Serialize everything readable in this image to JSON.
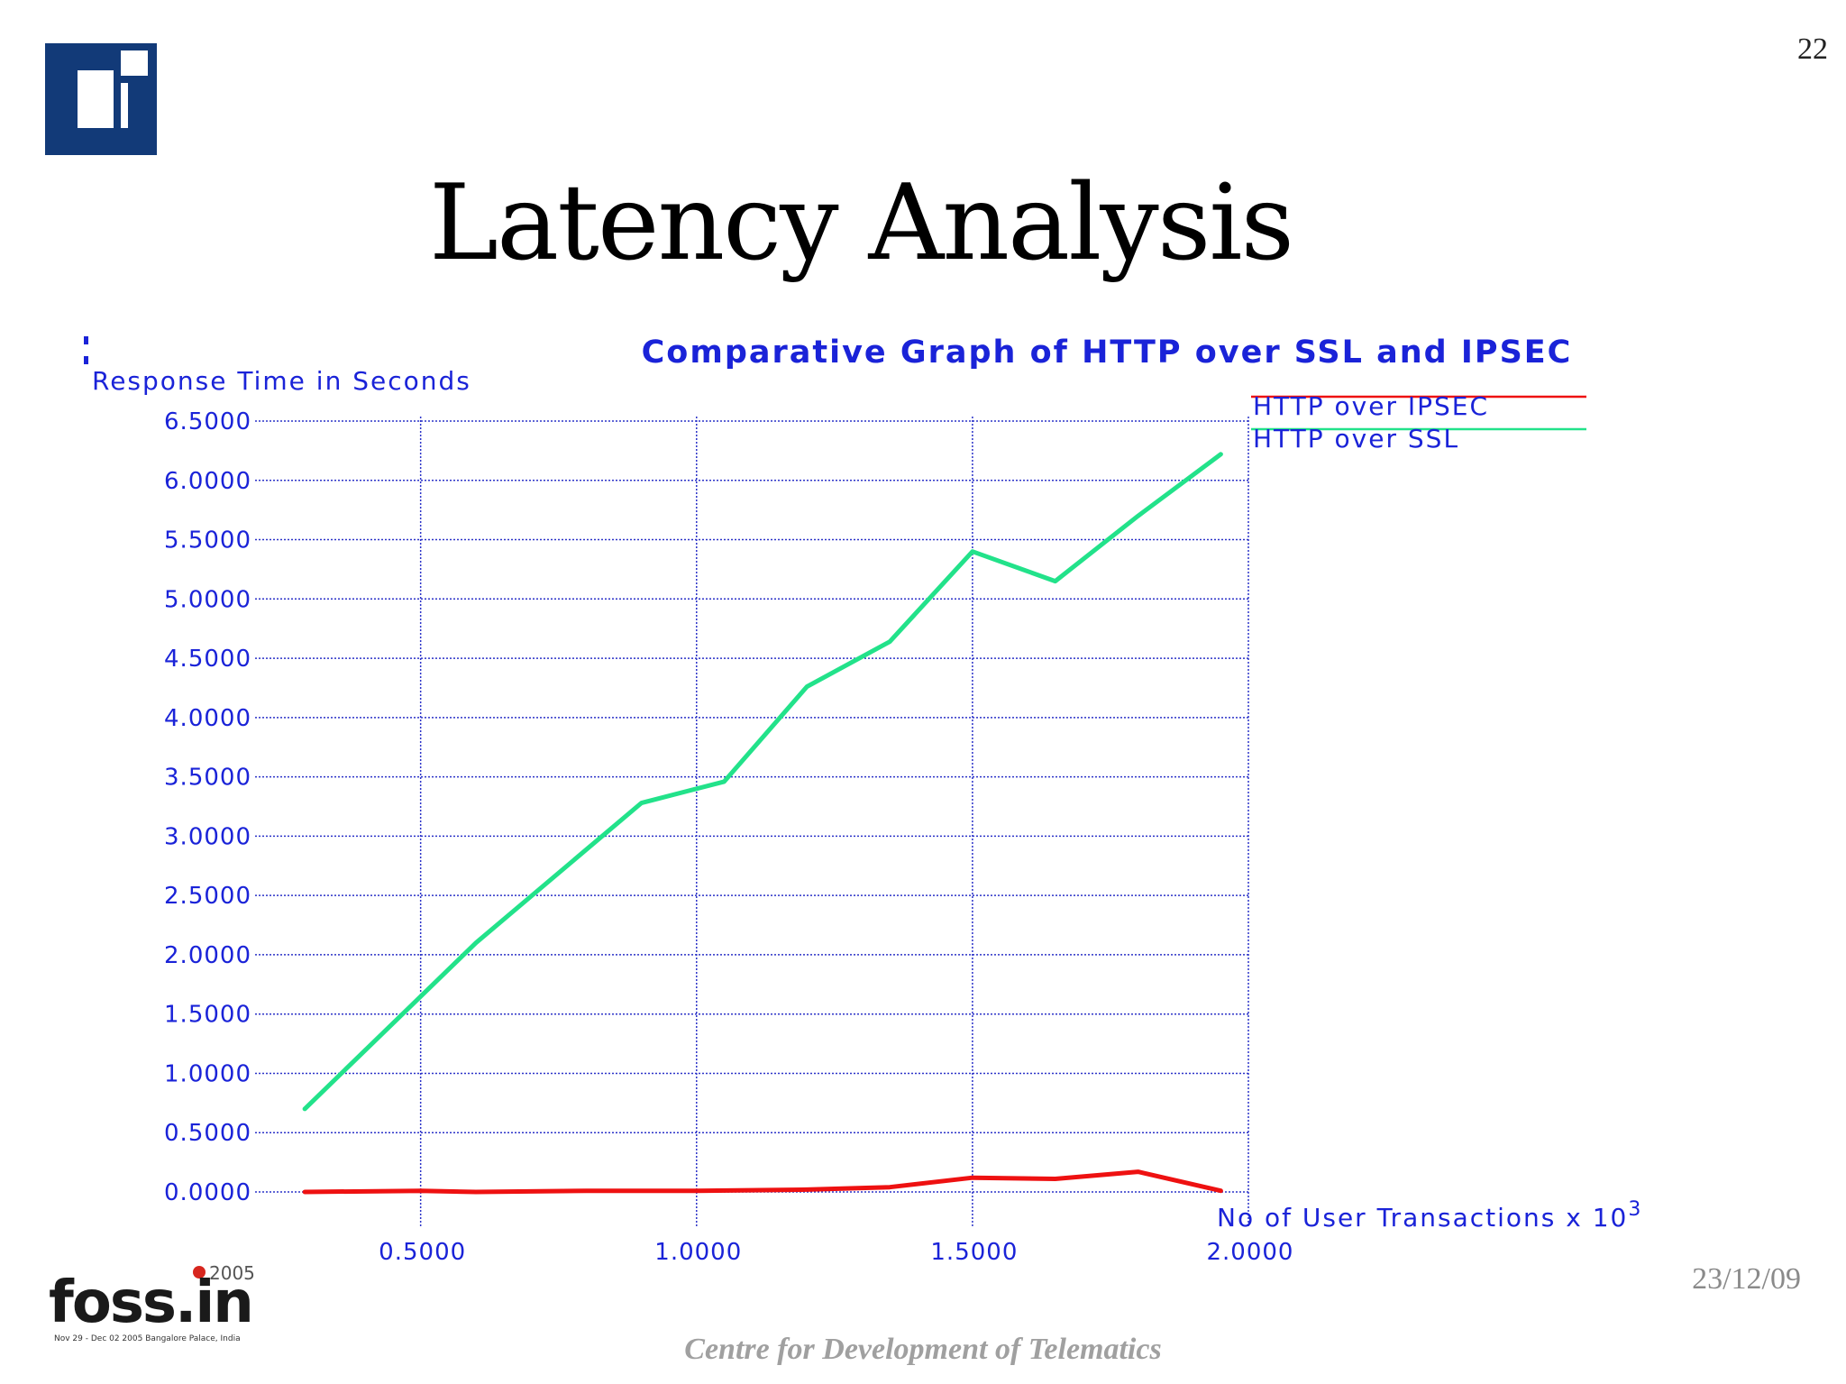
{
  "slide": {
    "page_number": "22",
    "title": "Latency Analysis",
    "date": "23/12/09",
    "footer": "Centre for Development of Telematics",
    "foss_logo": {
      "main": "foss.in",
      "year": "2005",
      "subtitle": "Nov 29 - Dec 02 2005   Bangalore Palace, India"
    }
  },
  "colors": {
    "chart_text": "#1a23d8",
    "grid": "#2c33c8",
    "ipsec": "#ee1111",
    "ssl": "#22e28a",
    "logo_dark": "#123a78",
    "logo_light": "#ffffff"
  },
  "chart_data": {
    "type": "line",
    "title": "Comparative Graph of HTTP over SSL and IPSEC",
    "ylabel": "Response Time in Seconds",
    "xlabel": "No of User Transactions x 10",
    "xlabel_superscript": "3",
    "xlim": [
      0.2,
      2.0
    ],
    "ylim": [
      0,
      6.5
    ],
    "x_ticks": [
      0.5,
      1.0,
      1.5,
      2.0
    ],
    "x_tick_labels": [
      "0.5000",
      "1.0000",
      "1.5000",
      "2.0000"
    ],
    "y_ticks": [
      0,
      0.5,
      1.0,
      1.5,
      2.0,
      2.5,
      3.0,
      3.5,
      4.0,
      4.5,
      5.0,
      5.5,
      6.0,
      6.5
    ],
    "y_tick_labels": [
      "0.0000",
      "0.5000",
      "1.0000",
      "1.5000",
      "2.0000",
      "2.5000",
      "3.0000",
      "3.5000",
      "4.0000",
      "4.5000",
      "5.0000",
      "5.5000",
      "6.0000",
      "6.5000"
    ],
    "grid": true,
    "legend_position": "top-right",
    "series": [
      {
        "name": "HTTP over IPSEC",
        "color": "#ee1111",
        "points": [
          [
            0.29,
            0.0
          ],
          [
            0.5,
            0.01
          ],
          [
            0.6,
            0.0
          ],
          [
            0.8,
            0.01
          ],
          [
            1.0,
            0.01
          ],
          [
            1.2,
            0.02
          ],
          [
            1.35,
            0.04
          ],
          [
            1.5,
            0.12
          ],
          [
            1.65,
            0.11
          ],
          [
            1.8,
            0.17
          ],
          [
            1.95,
            0.01
          ]
        ]
      },
      {
        "name": "HTTP over SSL",
        "color": "#22e28a",
        "points": [
          [
            0.29,
            0.7
          ],
          [
            0.6,
            2.1
          ],
          [
            0.9,
            3.28
          ],
          [
            1.05,
            3.46
          ],
          [
            1.2,
            4.26
          ],
          [
            1.35,
            4.64
          ],
          [
            1.5,
            5.4
          ],
          [
            1.65,
            5.15
          ],
          [
            1.8,
            5.7
          ],
          [
            1.95,
            6.22
          ]
        ]
      }
    ]
  }
}
